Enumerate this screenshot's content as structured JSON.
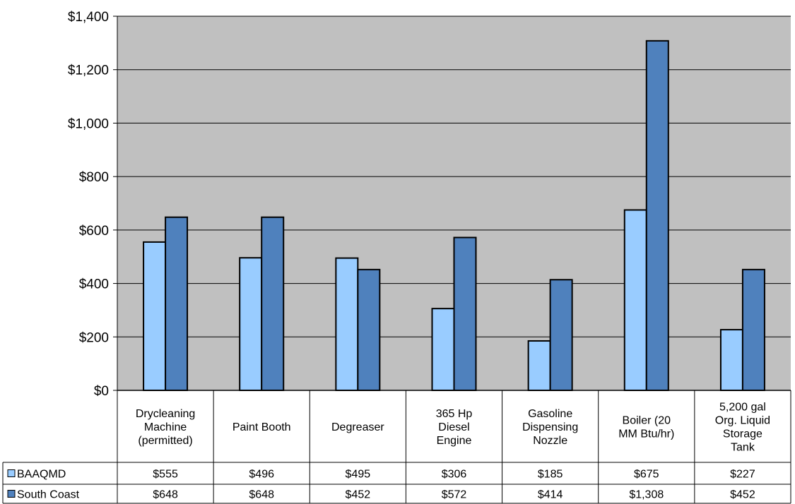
{
  "chart_data": {
    "type": "bar",
    "categories": [
      [
        "Drycleaning",
        "Machine",
        "(permitted)"
      ],
      [
        "Paint Booth"
      ],
      [
        "Degreaser"
      ],
      [
        "365 Hp",
        "Diesel",
        "Engine"
      ],
      [
        "Gasoline",
        "Dispensing",
        "Nozzle"
      ],
      [
        "Boiler (20",
        "MM Btu/hr)"
      ],
      [
        "5,200 gal",
        "Org. Liquid",
        "Storage",
        "Tank"
      ]
    ],
    "series": [
      {
        "name": "BAAQMD",
        "color": "#99ccff",
        "values": [
          555,
          496,
          495,
          306,
          185,
          675,
          227
        ],
        "labels": [
          "$555",
          "$496",
          "$495",
          "$306",
          "$185",
          "$675",
          "$227"
        ]
      },
      {
        "name": "South Coast",
        "color": "#4f81bd",
        "values": [
          648,
          648,
          452,
          572,
          414,
          1308,
          452
        ],
        "labels": [
          "$648",
          "$648",
          "$452",
          "$572",
          "$414",
          "$1,308",
          "$452"
        ]
      }
    ],
    "ylim": [
      0,
      1400
    ],
    "yticks": [
      0,
      200,
      400,
      600,
      800,
      1000,
      1200,
      1400
    ],
    "ytick_labels": [
      "$0",
      "$200",
      "$400",
      "$600",
      "$800",
      "$1,000",
      "$1,200",
      "$1,400"
    ],
    "plot_background": "#c0c0c0",
    "grid": true,
    "legend": "data-table-left"
  }
}
